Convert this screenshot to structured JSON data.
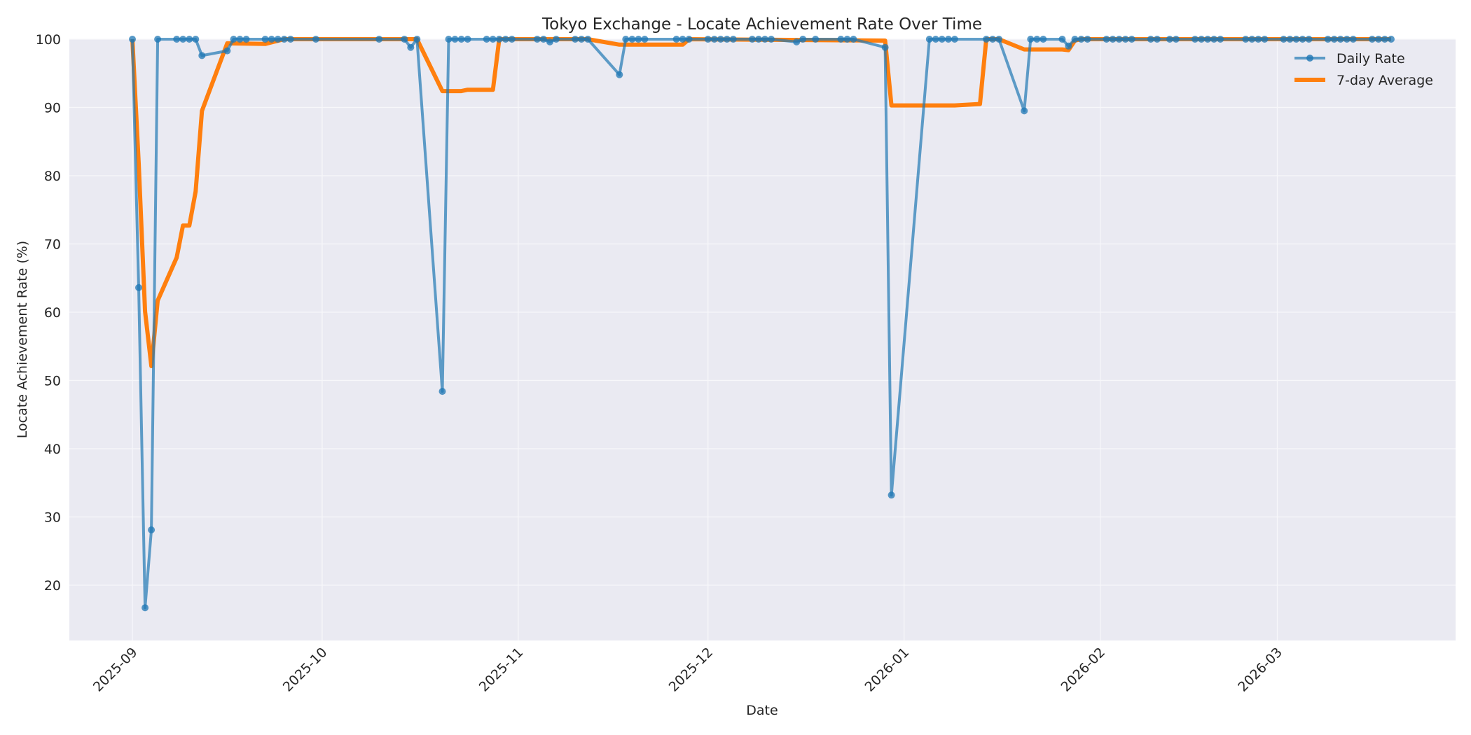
{
  "chart_data": {
    "type": "line",
    "title": "Tokyo Exchange - Locate Achievement Rate Over Time",
    "xlabel": "Date",
    "ylabel": "Locate Achievement Rate (%)",
    "ylim": [
      11.9,
      100
    ],
    "yticks": [
      20,
      30,
      40,
      50,
      60,
      70,
      80,
      90,
      100
    ],
    "xticks": [
      "2025-09",
      "2025-10",
      "2025-11",
      "2025-12",
      "2026-01",
      "2026-02",
      "2026-03"
    ],
    "xtick_days": [
      0,
      30,
      61,
      91,
      122,
      153,
      181
    ],
    "x_origin_date": "2025-09-01",
    "grid": true,
    "legend_position": "upper right",
    "series": [
      {
        "name": "Daily Rate",
        "color": "#1f77b4",
        "marker": "circle",
        "points": [
          [
            "2025-09-01",
            100
          ],
          [
            "2025-09-02",
            63.6
          ],
          [
            "2025-09-03",
            16.7
          ],
          [
            "2025-09-04",
            28.1
          ],
          [
            "2025-09-05",
            100
          ],
          [
            "2025-09-08",
            100
          ],
          [
            "2025-09-09",
            100
          ],
          [
            "2025-09-10",
            100
          ],
          [
            "2025-09-11",
            100
          ],
          [
            "2025-09-12",
            97.6
          ],
          [
            "2025-09-16",
            98.3
          ],
          [
            "2025-09-17",
            100
          ],
          [
            "2025-09-18",
            100
          ],
          [
            "2025-09-19",
            100
          ],
          [
            "2025-09-22",
            100
          ],
          [
            "2025-09-23",
            100
          ],
          [
            "2025-09-24",
            100
          ],
          [
            "2025-09-25",
            100
          ],
          [
            "2025-09-26",
            100
          ],
          [
            "2025-09-30",
            100
          ],
          [
            "2025-10-10",
            100
          ],
          [
            "2025-10-14",
            100
          ],
          [
            "2025-10-15",
            98.8
          ],
          [
            "2025-10-16",
            100
          ],
          [
            "2025-10-20",
            48.4
          ],
          [
            "2025-10-21",
            100
          ],
          [
            "2025-10-22",
            100
          ],
          [
            "2025-10-23",
            100
          ],
          [
            "2025-10-24",
            100
          ],
          [
            "2025-10-27",
            100
          ],
          [
            "2025-10-28",
            100
          ],
          [
            "2025-10-29",
            100
          ],
          [
            "2025-10-30",
            100
          ],
          [
            "2025-10-31",
            100
          ],
          [
            "2025-11-04",
            100
          ],
          [
            "2025-11-05",
            100
          ],
          [
            "2025-11-06",
            99.6
          ],
          [
            "2025-11-07",
            100
          ],
          [
            "2025-11-10",
            100
          ],
          [
            "2025-11-11",
            100
          ],
          [
            "2025-11-12",
            100
          ],
          [
            "2025-11-17",
            94.8
          ],
          [
            "2025-11-18",
            100
          ],
          [
            "2025-11-19",
            100
          ],
          [
            "2025-11-20",
            100
          ],
          [
            "2025-11-21",
            100
          ],
          [
            "2025-11-26",
            100
          ],
          [
            "2025-11-27",
            100
          ],
          [
            "2025-11-28",
            100
          ],
          [
            "2025-12-01",
            100
          ],
          [
            "2025-12-02",
            100
          ],
          [
            "2025-12-03",
            100
          ],
          [
            "2025-12-04",
            100
          ],
          [
            "2025-12-05",
            100
          ],
          [
            "2025-12-08",
            100
          ],
          [
            "2025-12-09",
            100
          ],
          [
            "2025-12-10",
            100
          ],
          [
            "2025-12-11",
            100
          ],
          [
            "2025-12-15",
            99.6
          ],
          [
            "2025-12-16",
            100
          ],
          [
            "2025-12-18",
            100
          ],
          [
            "2025-12-22",
            100
          ],
          [
            "2025-12-23",
            100
          ],
          [
            "2025-12-24",
            100
          ],
          [
            "2025-12-29",
            98.8
          ],
          [
            "2025-12-30",
            33.2
          ],
          [
            "2026-01-05",
            100
          ],
          [
            "2026-01-06",
            100
          ],
          [
            "2026-01-07",
            100
          ],
          [
            "2026-01-08",
            100
          ],
          [
            "2026-01-09",
            100
          ],
          [
            "2026-01-14",
            100
          ],
          [
            "2026-01-15",
            100
          ],
          [
            "2026-01-16",
            100
          ],
          [
            "2026-01-20",
            89.5
          ],
          [
            "2026-01-21",
            100
          ],
          [
            "2026-01-22",
            100
          ],
          [
            "2026-01-23",
            100
          ],
          [
            "2026-01-26",
            100
          ],
          [
            "2026-01-27",
            99.0
          ],
          [
            "2026-01-28",
            100
          ],
          [
            "2026-01-29",
            100
          ],
          [
            "2026-01-30",
            100
          ],
          [
            "2026-02-02",
            100
          ],
          [
            "2026-02-03",
            100
          ],
          [
            "2026-02-04",
            100
          ],
          [
            "2026-02-05",
            100
          ],
          [
            "2026-02-06",
            100
          ],
          [
            "2026-02-09",
            100
          ],
          [
            "2026-02-10",
            100
          ],
          [
            "2026-02-12",
            100
          ],
          [
            "2026-02-13",
            100
          ],
          [
            "2026-02-16",
            100
          ],
          [
            "2026-02-17",
            100
          ],
          [
            "2026-02-18",
            100
          ],
          [
            "2026-02-19",
            100
          ],
          [
            "2026-02-20",
            100
          ],
          [
            "2026-02-24",
            100
          ],
          [
            "2026-02-25",
            100
          ],
          [
            "2026-02-26",
            100
          ],
          [
            "2026-02-27",
            100
          ],
          [
            "2026-03-02",
            100
          ],
          [
            "2026-03-03",
            100
          ],
          [
            "2026-03-04",
            100
          ],
          [
            "2026-03-05",
            100
          ],
          [
            "2026-03-06",
            100
          ],
          [
            "2026-03-09",
            100
          ],
          [
            "2026-03-10",
            100
          ],
          [
            "2026-03-11",
            100
          ],
          [
            "2026-03-12",
            100
          ],
          [
            "2026-03-13",
            100
          ],
          [
            "2026-03-16",
            100
          ],
          [
            "2026-03-17",
            100
          ],
          [
            "2026-03-18",
            100
          ],
          [
            "2026-03-19",
            100
          ]
        ]
      },
      {
        "name": "7-day Average",
        "color": "#ff7f0e",
        "marker": "none",
        "points": [
          [
            "2025-09-01",
            100
          ],
          [
            "2025-09-02",
            81.8
          ],
          [
            "2025-09-03",
            60.1
          ],
          [
            "2025-09-04",
            52.1
          ],
          [
            "2025-09-05",
            61.7
          ],
          [
            "2025-09-08",
            68.0
          ],
          [
            "2025-09-09",
            72.7
          ],
          [
            "2025-09-10",
            72.7
          ],
          [
            "2025-09-11",
            77.7
          ],
          [
            "2025-09-12",
            89.5
          ],
          [
            "2025-09-16",
            99.4
          ],
          [
            "2025-09-22",
            99.3
          ],
          [
            "2025-09-25",
            100
          ],
          [
            "2025-10-16",
            100
          ],
          [
            "2025-10-20",
            92.4
          ],
          [
            "2025-10-23",
            92.4
          ],
          [
            "2025-10-24",
            92.6
          ],
          [
            "2025-10-28",
            92.6
          ],
          [
            "2025-10-29",
            100
          ],
          [
            "2025-11-12",
            100
          ],
          [
            "2025-11-17",
            99.2
          ],
          [
            "2025-11-27",
            99.2
          ],
          [
            "2025-11-28",
            100
          ],
          [
            "2025-12-29",
            99.8
          ],
          [
            "2025-12-30",
            90.3
          ],
          [
            "2026-01-09",
            90.3
          ],
          [
            "2026-01-13",
            90.5
          ],
          [
            "2026-01-14",
            100
          ],
          [
            "2026-01-16",
            100
          ],
          [
            "2026-01-20",
            98.5
          ],
          [
            "2026-01-26",
            98.5
          ],
          [
            "2026-01-27",
            98.4
          ],
          [
            "2026-01-28",
            99.8
          ],
          [
            "2026-01-29",
            100
          ],
          [
            "2026-03-19",
            100
          ]
        ]
      }
    ]
  },
  "legend": {
    "items": [
      {
        "label": "Daily Rate",
        "color": "#1f77b4"
      },
      {
        "label": "7-day Average",
        "color": "#ff7f0e"
      }
    ]
  },
  "style": {
    "plot_bg": "#eaeaf2",
    "grid_color": "#f5f5f8",
    "text_color": "#262626"
  }
}
